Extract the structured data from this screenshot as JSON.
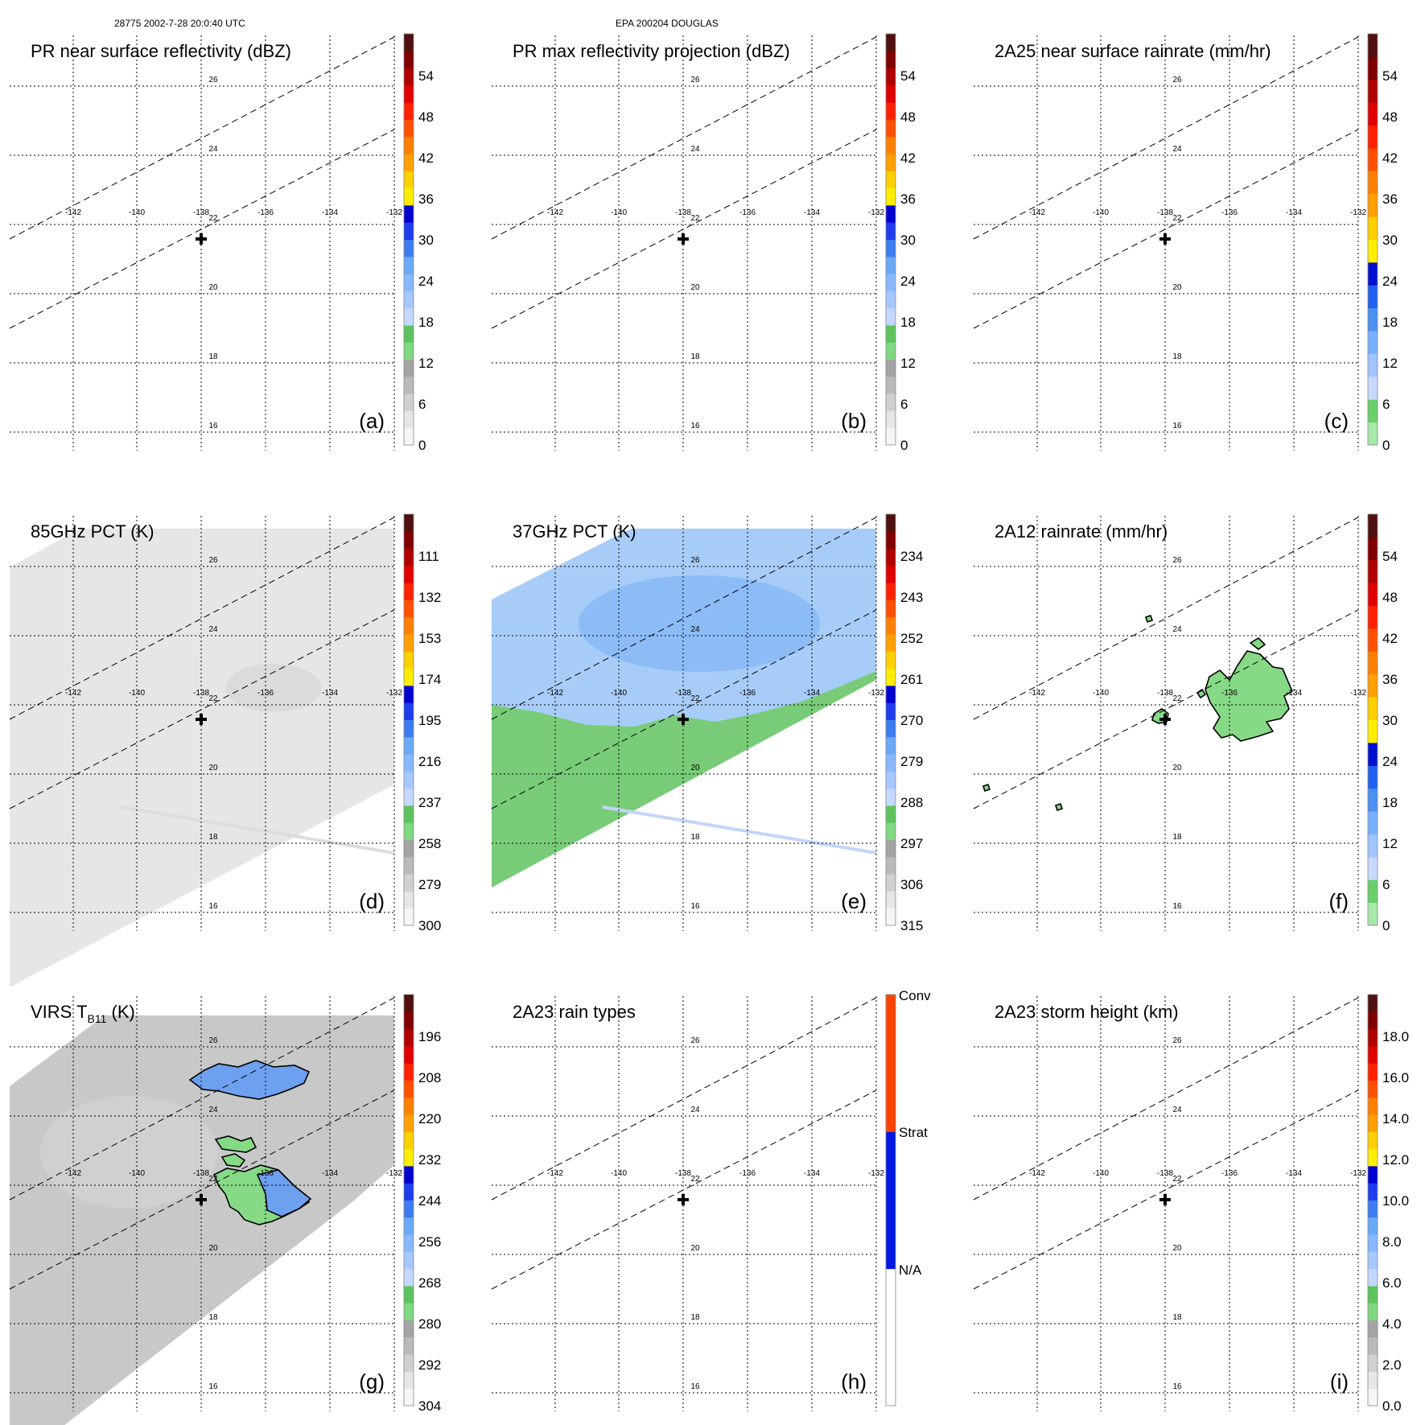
{
  "header": {
    "left": "28775 2002-7-28 20:0:40 UTC",
    "center": "EPA 200204 DOUGLAS"
  },
  "grid": {
    "lon_ticks": [
      "-142",
      "-140",
      "-138",
      "-136",
      "-134",
      "-132"
    ],
    "lat_ticks": [
      "26",
      "24",
      "22",
      "20",
      "18",
      "16"
    ]
  },
  "palettes": {
    "rainbow": [
      "#f6f6f6",
      "#e6e6e6",
      "#d0d0d0",
      "#bababa",
      "#a4a4a4",
      "#80d880",
      "#5cc45c",
      "#c4d8ff",
      "#a6c8ff",
      "#88b8ff",
      "#6aa8f8",
      "#3c7cf0",
      "#1e3cf0",
      "#0000d0",
      "#ffee00",
      "#ffd000",
      "#ffa000",
      "#ff8000",
      "#ff5000",
      "#ff2000",
      "#e00000",
      "#b00000",
      "#800000",
      "#501010"
    ],
    "rain": [
      "#a8e8a8",
      "#6ad06a",
      "#c8d8ff",
      "#a0c4ff",
      "#78b0ff",
      "#4a90f0",
      "#2060f0",
      "#0010d0",
      "#ffee00",
      "#ffd000",
      "#ffa000",
      "#ff8000",
      "#ff5000",
      "#ff2000",
      "#e00000",
      "#b00000",
      "#800000",
      "#501010"
    ],
    "raintype": [
      "#ffffff",
      "#0018e8",
      "#ff4400"
    ],
    "swath": {
      "pct85": "#e6e6e6",
      "pct37_blue": "#a8ccf8",
      "pct37_green": "#78cc78",
      "virs": "#c8c8c8",
      "rain_fill": "#86da86",
      "cloud_blue": "#6ea0f0"
    }
  },
  "panels": [
    {
      "id": "a",
      "title": "PR near surface reflectivity (dBZ)",
      "letter": "(a)",
      "palette": "rainbow",
      "ticks": [
        "54",
        "48",
        "42",
        "36",
        "30",
        "24",
        "18",
        "12",
        "6",
        "0"
      ],
      "overlay": "none"
    },
    {
      "id": "b",
      "title": "PR max reflectivity projection (dBZ)",
      "letter": "(b)",
      "palette": "rainbow",
      "ticks": [
        "54",
        "48",
        "42",
        "36",
        "30",
        "24",
        "18",
        "12",
        "6",
        "0"
      ],
      "overlay": "none"
    },
    {
      "id": "c",
      "title": "2A25 near surface rainrate (mm/hr)",
      "letter": "(c)",
      "palette": "rain",
      "ticks": [
        "54",
        "48",
        "42",
        "36",
        "30",
        "24",
        "18",
        "12",
        "6",
        "0"
      ],
      "overlay": "none"
    },
    {
      "id": "d",
      "title": "85GHz PCT (K)",
      "letter": "(d)",
      "palette": "rainbow",
      "ticks": [
        "111",
        "132",
        "153",
        "174",
        "195",
        "216",
        "237",
        "258",
        "279",
        "300"
      ],
      "overlay": "pct85"
    },
    {
      "id": "e",
      "title": "37GHz PCT (K)",
      "letter": "(e)",
      "palette": "rainbow",
      "ticks": [
        "234",
        "243",
        "252",
        "261",
        "270",
        "279",
        "288",
        "297",
        "306",
        "315"
      ],
      "overlay": "pct37"
    },
    {
      "id": "f",
      "title": "2A12 rainrate (mm/hr)",
      "letter": "(f)",
      "palette": "rain",
      "ticks": [
        "54",
        "48",
        "42",
        "36",
        "30",
        "24",
        "18",
        "12",
        "6",
        "0"
      ],
      "overlay": "rain2a12"
    },
    {
      "id": "g",
      "title_main": "VIRS T",
      "title_sub": "B11",
      "title_unit": " (K)",
      "letter": "(g)",
      "palette": "rainbow",
      "ticks": [
        "196",
        "208",
        "220",
        "232",
        "244",
        "256",
        "268",
        "280",
        "292",
        "304"
      ],
      "overlay": "virs"
    },
    {
      "id": "h",
      "title": "2A23 rain types",
      "letter": "(h)",
      "palette": "raintype",
      "ticks": [
        "Conv",
        "Strat",
        "N/A"
      ],
      "overlay": "none"
    },
    {
      "id": "i",
      "title": "2A23 storm height (km)",
      "letter": "(i)",
      "palette": "rainbow",
      "ticks": [
        "18.0",
        "16.0",
        "14.0",
        "12.0",
        "10.0",
        "8.0",
        "6.0",
        "4.0",
        "2.0",
        "0.0"
      ],
      "overlay": "none"
    }
  ]
}
